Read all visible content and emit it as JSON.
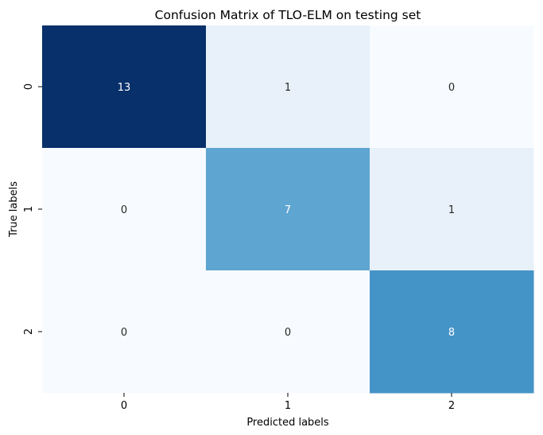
{
  "chart_data": {
    "type": "heatmap",
    "title": "Confusion Matrix of TLO-ELM on testing set",
    "xlabel": "Predicted labels",
    "ylabel": "True labels",
    "x_categories": [
      "0",
      "1",
      "2"
    ],
    "y_categories": [
      "0",
      "1",
      "2"
    ],
    "values": [
      [
        13,
        1,
        0
      ],
      [
        0,
        7,
        1
      ],
      [
        0,
        0,
        8
      ]
    ],
    "value_range": [
      0,
      13
    ],
    "colormap": "Blues",
    "colorbar": false,
    "grid": false
  }
}
